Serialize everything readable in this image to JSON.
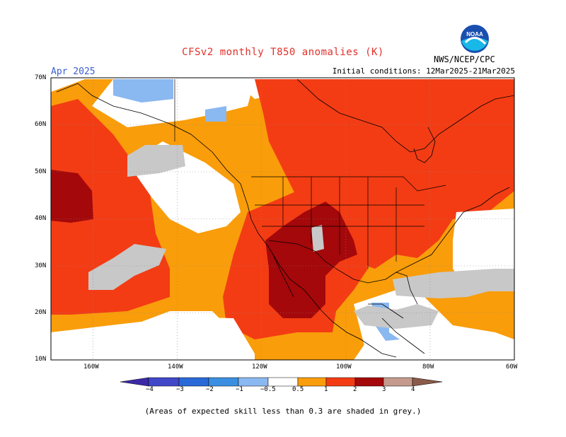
{
  "header": {
    "title": "CFSv2 monthly T850 anomalies (K)",
    "month": "Apr 2025",
    "initial_conditions": "Initial conditions: 12Mar2025-21Mar2025",
    "agency": "NWS/NCEP/CPC",
    "logo_text": "NOAA"
  },
  "map": {
    "lat_labels": [
      "70N",
      "60N",
      "50N",
      "40N",
      "30N",
      "20N",
      "10N"
    ],
    "lon_labels": [
      "160W",
      "140W",
      "120W",
      "100W",
      "80W",
      "60W"
    ],
    "lat_range": [
      10,
      70
    ],
    "lon_range": [
      -170,
      -60
    ],
    "colors": {
      "cool2": "#3a8fe0",
      "cool1": "#8ab8f0",
      "neutral": "#ffffff",
      "warm1": "#f99d0a",
      "warm2": "#f33c14",
      "warm3": "#a4080a",
      "grey": "#c8c8c8"
    }
  },
  "colorbar": {
    "ticks": [
      "−4",
      "−3",
      "−2",
      "−1",
      "−0.5",
      "0.5",
      "1",
      "2",
      "3",
      "4"
    ],
    "colors": [
      "#3b2aa8",
      "#4047c8",
      "#2a6ad8",
      "#3a8fe0",
      "#8ab8f0",
      "#ffffff",
      "#f99d0a",
      "#f33c14",
      "#a4080a",
      "#c49a8c"
    ]
  },
  "footnote": "(Areas of expected skill less than 0.3 are shaded in grey.)"
}
